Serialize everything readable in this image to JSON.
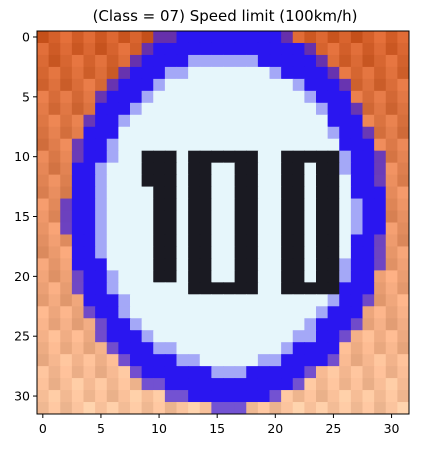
{
  "title": "(Class = 07) Speed limit (100km/h)",
  "image": {
    "grid_size": 32,
    "sign_text": "100",
    "colors": {
      "background_top": "#d5602a",
      "background_bottom": "#fbc49e",
      "ring": "#2a16f0",
      "sign_face": "#e6f6fb",
      "digits": "#1a1a22"
    }
  },
  "axes": {
    "x_ticks": [
      "0",
      "5",
      "10",
      "15",
      "20",
      "25",
      "30"
    ],
    "y_ticks": [
      "0",
      "5",
      "10",
      "15",
      "20",
      "25",
      "30"
    ],
    "x_range": [
      -0.5,
      31.5
    ],
    "y_range": [
      -0.5,
      31.5
    ]
  }
}
